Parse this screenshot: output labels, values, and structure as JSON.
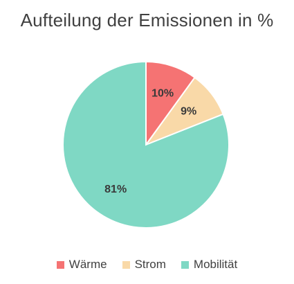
{
  "chart_data": {
    "type": "pie",
    "title": "Aufteilung der Emissionen in %",
    "categories": [
      "Wärme",
      "Strom",
      "Mobilität"
    ],
    "values": [
      10,
      9,
      81
    ],
    "data_labels": [
      "10%",
      "9%",
      "81%"
    ],
    "colors": [
      "#f57373",
      "#f9d9a8",
      "#7fd8c4"
    ],
    "legend_position": "bottom",
    "start_angle_deg": 0,
    "direction": "clockwise"
  }
}
